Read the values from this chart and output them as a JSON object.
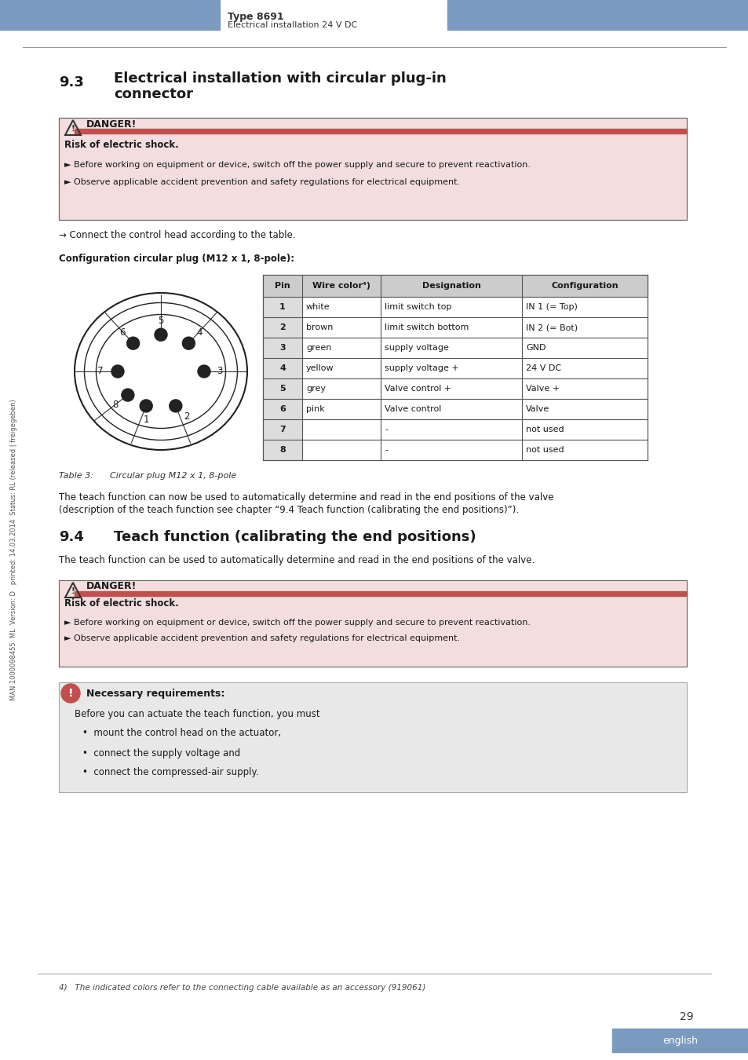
{
  "header_blue": "#7A9BBF",
  "header_text_left": "Type 8691",
  "header_text_left2": "Electrical installation 24 V DC",
  "burkert_color": "#7A9BBF",
  "section_title": "9.3   Electrical installation with circular plug-in\n       connector",
  "danger_title": "DANGER!",
  "danger_bar_color": "#C0504D",
  "danger_bg_color": "#F2DEDE",
  "danger_line1": "Risk of electric shock.",
  "danger_bullet1": "► Before working on equipment or device, switch off the power supply and secure to prevent reactivation.",
  "danger_bullet2": "► Observe applicable accident prevention and safety regulations for electrical equipment.",
  "arrow_text": "→ Connect the control head according to the table.",
  "config_title": "Configuration circular plug (M12 x 1, 8-pole):",
  "table_header": [
    "Pin",
    "Wire color⁴⧩",
    "Designation",
    "Configuration"
  ],
  "table_rows": [
    [
      "1",
      "white",
      "limit switch top",
      "IN 1 (= Top)"
    ],
    [
      "2",
      "brown",
      "limit switch bottom",
      "IN 2 (= Bot)"
    ],
    [
      "3",
      "green",
      "supply voltage",
      "GND"
    ],
    [
      "4",
      "yellow",
      "supply voltage +",
      "24 V DC"
    ],
    [
      "5",
      "grey",
      "Valve control +",
      "Valve +"
    ],
    [
      "6",
      "pink",
      "Valve control",
      "Valve"
    ],
    [
      "7",
      "",
      "-",
      "not used"
    ],
    [
      "8",
      "",
      "-",
      "not used"
    ]
  ],
  "table_caption": "Table 3:      Circular plug M12 x 1, 8-pole",
  "teach_intro": "The teach function can now be used to automatically determine and read in the end positions of the valve\n(description of the teach function see chapter “9.4 Teach function (calibrating the end positions)”).",
  "section94_title": "9.4   Teach function (calibrating the end positions)",
  "teach_desc": "The teach function can be used to automatically determine and read in the end positions of the valve.",
  "danger2_title": "DANGER!",
  "danger2_line1": "Risk of electric shock.",
  "danger2_bullet1": "► Before working on equipment or device, switch off the power supply and secure to prevent reactivation.",
  "danger2_bullet2": "► Observe applicable accident prevention and safety regulations for electrical equipment.",
  "note_title": "Necessary requirements:",
  "note_bg": "#E8E8E8",
  "note_color": "#C0504D",
  "note_text": "Before you can actuate the teach function, you must",
  "note_bullets": [
    "•  mount the control head on the actuator,",
    "•  connect the supply voltage and",
    "•  connect the compressed-air supply."
  ],
  "footnote": "4)   The indicated colors refer to the connecting cable available as an accessory (919061)",
  "page_number": "29",
  "lang_button": "english",
  "sidebar_text": "MAN 1000098455  ML  Version: D   printed: 14.03.2014  Status: RL (released | freigegeben)"
}
